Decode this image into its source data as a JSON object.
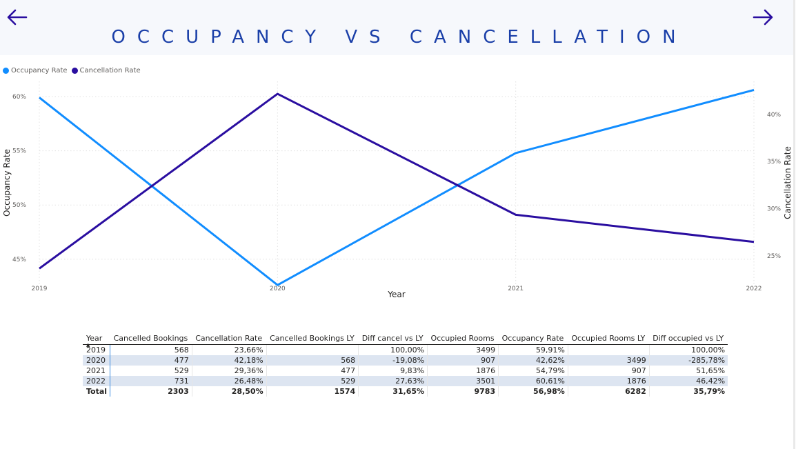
{
  "header": {
    "title": "OCCUPANCY VS CANCELLATION",
    "back_icon": "arrow-left-icon",
    "next_icon": "arrow-right-icon",
    "accent_color": "#1a3fa8",
    "background_color": "#f6f8fc"
  },
  "chart_data": {
    "type": "line",
    "x": [
      "2019",
      "2020",
      "2021",
      "2022"
    ],
    "xlabel": "Year",
    "ylabel": "Occupancy Rate",
    "y2label": "Cancellation Rate",
    "ylim": [
      42.7,
      61.4
    ],
    "y2lim": [
      22.0,
      43.5
    ],
    "yticks": [
      "60%",
      "55%",
      "50%",
      "45%"
    ],
    "y2ticks": [
      "40%",
      "35%",
      "30%",
      "25%"
    ],
    "grid": true,
    "legend_position": "top-left",
    "series": [
      {
        "name": "Occupancy Rate",
        "axis": "left",
        "color": "#118dff",
        "values": [
          59.91,
          42.62,
          54.79,
          60.61
        ]
      },
      {
        "name": "Cancellation Rate",
        "axis": "right",
        "color": "#2a0ea0",
        "values": [
          23.66,
          42.18,
          29.36,
          26.48
        ]
      }
    ]
  },
  "table": {
    "columns": [
      "Year",
      "Cancelled Bookings",
      "Cancellation Rate",
      "Cancelled Bookings LY",
      "Diff cancel vs LY",
      "Occupied Rooms",
      "Occupancy Rate",
      "Occupied Rooms LY",
      "Diff occupied vs LY"
    ],
    "rows": [
      [
        "2019",
        "568",
        "23,66%",
        "",
        "100,00%",
        "3499",
        "59,91%",
        "",
        "100,00%"
      ],
      [
        "2020",
        "477",
        "42,18%",
        "568",
        "-19,08%",
        "907",
        "42,62%",
        "3499",
        "-285,78%"
      ],
      [
        "2021",
        "529",
        "29,36%",
        "477",
        "9,83%",
        "1876",
        "54,79%",
        "907",
        "51,65%"
      ],
      [
        "2022",
        "731",
        "26,48%",
        "529",
        "27,63%",
        "3501",
        "60,61%",
        "1876",
        "46,42%"
      ]
    ],
    "total": [
      "Total",
      "2303",
      "28,50%",
      "1574",
      "31,65%",
      "9783",
      "56,98%",
      "6282",
      "35,79%"
    ],
    "sort_indicator": "▲"
  }
}
